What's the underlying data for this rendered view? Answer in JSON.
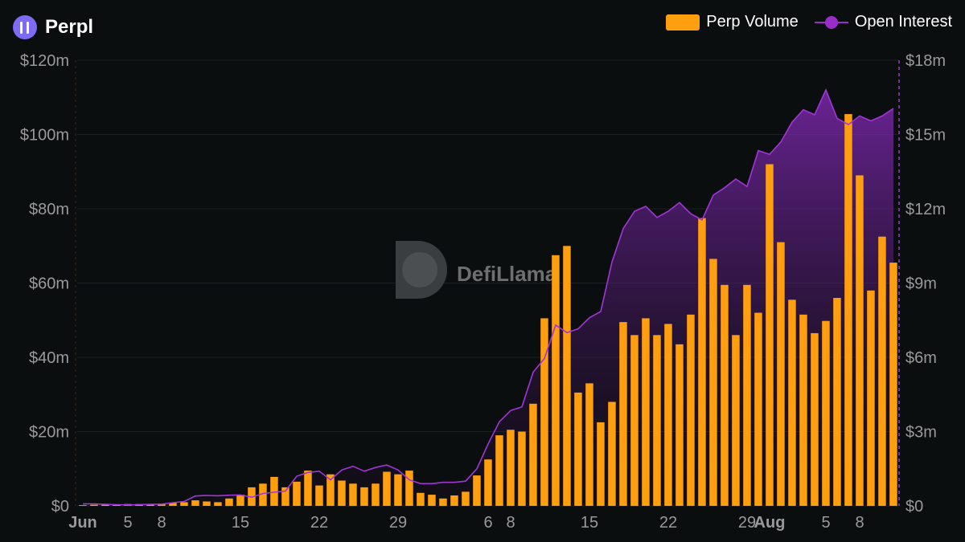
{
  "header": {
    "title": "Perpl"
  },
  "watermark": "DefiLlama",
  "legend": {
    "perp_volume": "Perp Volume",
    "open_interest": "Open Interest"
  },
  "colors": {
    "volume": "#ff9e0f",
    "open_interest": "#9a2cc9",
    "background": "#0b0e0f"
  },
  "chart_data": {
    "type": "bar",
    "x_labels": [
      "Jun",
      "5",
      "8",
      "15",
      "22",
      "29",
      "6",
      "8",
      "15",
      "22",
      "29",
      "Aug",
      "5",
      "8"
    ],
    "left_axis": {
      "ticks": [
        "$0",
        "$20m",
        "$40m",
        "$60m",
        "$80m",
        "$100m",
        "$120m"
      ],
      "ylim": [
        0,
        120
      ]
    },
    "right_axis": {
      "ticks": [
        "$0",
        "$3m",
        "$6m",
        "$9m",
        "$12m",
        "$15m",
        "$18m"
      ],
      "ylim": [
        0,
        18
      ]
    },
    "series": [
      {
        "name": "Perp Volume",
        "type": "bar",
        "axis": "left",
        "unit": "$m",
        "values": [
          0.2,
          0.3,
          0.4,
          0.4,
          0.5,
          0.5,
          0.5,
          0.6,
          0.8,
          1.0,
          1.5,
          1.2,
          1.0,
          2.0,
          3.0,
          5.0,
          6.0,
          7.8,
          5.0,
          6.5,
          9.5,
          5.5,
          8.5,
          6.8,
          6.0,
          5.0,
          6.0,
          9.2,
          8.5,
          9.5,
          3.5,
          3.0,
          2.0,
          2.8,
          3.8,
          8.2,
          12.5,
          19.0,
          20.5,
          20.0,
          27.5,
          50.5,
          67.5,
          70.0,
          30.5,
          33.0,
          22.5,
          28.0,
          49.5,
          46.0,
          50.5,
          46.0,
          49.0,
          43.5,
          51.5,
          77.5,
          66.5,
          59.5,
          46.0,
          59.5,
          52.0,
          92.0,
          71.0,
          55.5,
          51.5,
          46.5,
          49.8,
          56.0,
          105.5,
          89.0,
          58.0,
          72.5,
          65.5
        ]
      },
      {
        "name": "Open Interest",
        "type": "line",
        "axis": "right",
        "unit": "$m",
        "values": [
          0.08,
          0.08,
          0.06,
          0.05,
          0.04,
          0.05,
          0.06,
          0.07,
          0.13,
          0.18,
          0.4,
          0.42,
          0.41,
          0.43,
          0.44,
          0.35,
          0.5,
          0.55,
          0.6,
          1.2,
          1.35,
          1.4,
          1.05,
          1.45,
          1.6,
          1.4,
          1.55,
          1.65,
          1.45,
          1.05,
          0.9,
          0.9,
          0.95,
          0.95,
          1.0,
          1.5,
          2.5,
          3.4,
          3.85,
          4.0,
          5.4,
          5.95,
          7.3,
          7.0,
          7.15,
          7.6,
          7.85,
          9.85,
          11.2,
          11.9,
          12.1,
          11.65,
          11.9,
          12.25,
          11.8,
          11.55,
          12.55,
          12.85,
          13.2,
          12.9,
          14.35,
          14.2,
          14.7,
          15.5,
          16.0,
          15.8,
          16.8,
          15.65,
          15.4,
          15.75,
          15.55,
          15.75,
          16.05
        ]
      }
    ]
  }
}
